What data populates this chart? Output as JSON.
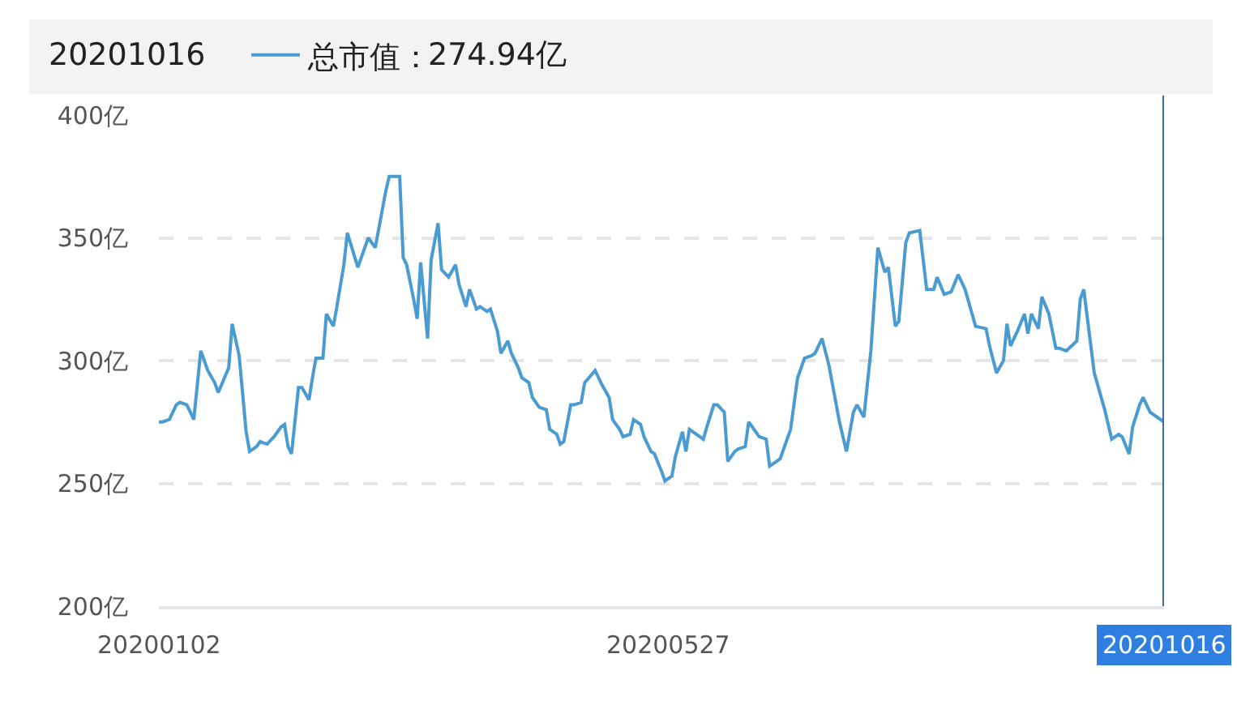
{
  "chart_data": {
    "type": "line",
    "title": "20201016",
    "legend": "top left",
    "x": [
      "2020-01-02",
      "2020-01-03",
      "2020-01-05",
      "2020-01-07",
      "2020-01-08",
      "2020-01-10",
      "2020-01-12",
      "2020-01-14",
      "2020-01-16",
      "2020-01-18",
      "2020-01-19",
      "2020-01-22",
      "2020-01-23",
      "2020-01-25",
      "2020-01-27",
      "2020-01-28",
      "2020-01-30",
      "2020-01-31",
      "2020-02-02",
      "2020-02-04",
      "2020-02-06",
      "2020-02-07",
      "2020-02-08",
      "2020-02-09",
      "2020-02-11",
      "2020-02-12",
      "2020-02-14",
      "2020-02-15",
      "2020-02-16",
      "2020-02-18",
      "2020-02-19",
      "2020-02-21",
      "2020-02-22",
      "2020-02-24",
      "2020-02-25",
      "2020-02-28",
      "2020-03-02",
      "2020-03-04",
      "2020-03-07",
      "2020-03-08",
      "2020-03-10",
      "2020-03-11",
      "2020-03-12",
      "2020-03-13",
      "2020-03-15",
      "2020-03-16",
      "2020-03-17",
      "2020-03-19",
      "2020-03-20",
      "2020-03-22",
      "2020-03-23",
      "2020-03-25",
      "2020-03-27",
      "2020-03-28",
      "2020-03-30",
      "2020-03-31",
      "2020-04-02",
      "2020-04-03",
      "2020-04-05",
      "2020-04-06",
      "2020-04-08",
      "2020-04-09",
      "2020-04-11",
      "2020-04-12",
      "2020-04-14",
      "2020-04-15",
      "2020-04-17",
      "2020-04-18",
      "2020-04-20",
      "2020-04-22",
      "2020-04-23",
      "2020-04-25",
      "2020-04-26",
      "2020-04-27",
      "2020-04-29",
      "2020-04-30",
      "2020-05-02",
      "2020-05-03",
      "2020-05-06",
      "2020-05-08",
      "2020-05-10",
      "2020-05-11",
      "2020-05-13",
      "2020-05-14",
      "2020-05-16",
      "2020-05-17",
      "2020-05-19",
      "2020-05-20",
      "2020-05-22",
      "2020-05-23",
      "2020-05-25",
      "2020-05-26",
      "2020-05-28",
      "2020-05-29",
      "2020-05-31",
      "2020-06-01",
      "2020-06-02",
      "2020-06-04",
      "2020-06-06",
      "2020-06-07",
      "2020-06-09",
      "2020-06-10",
      "2020-06-12",
      "2020-06-13",
      "2020-06-15",
      "2020-06-16",
      "2020-06-18",
      "2020-06-19",
      "2020-06-21",
      "2020-06-22",
      "2020-06-24",
      "2020-06-25",
      "2020-06-28",
      "2020-06-29",
      "2020-07-01",
      "2020-07-03",
      "2020-07-05",
      "2020-07-07",
      "2020-07-08",
      "2020-07-10",
      "2020-07-12",
      "2020-07-15",
      "2020-07-17",
      "2020-07-19",
      "2020-07-20",
      "2020-07-22",
      "2020-07-24",
      "2020-07-26",
      "2020-07-28",
      "2020-07-29",
      "2020-07-31",
      "2020-08-01",
      "2020-08-03",
      "2020-08-04",
      "2020-08-07",
      "2020-08-09",
      "2020-08-11",
      "2020-08-12",
      "2020-08-14",
      "2020-08-16",
      "2020-08-18",
      "2020-08-20",
      "2020-08-22",
      "2020-08-23",
      "2020-08-26",
      "2020-08-27",
      "2020-08-29",
      "2020-08-31",
      "2020-09-01",
      "2020-09-02",
      "2020-09-04",
      "2020-09-06",
      "2020-09-07",
      "2020-09-08",
      "2020-09-10",
      "2020-09-11",
      "2020-09-13",
      "2020-09-15",
      "2020-09-16",
      "2020-09-18",
      "2020-09-21",
      "2020-09-22",
      "2020-09-23",
      "2020-09-26",
      "2020-09-29",
      "2020-10-01",
      "2020-10-03",
      "2020-10-04",
      "2020-10-06",
      "2020-10-07",
      "2020-10-09",
      "2020-10-10",
      "2020-10-12",
      "2020-10-16"
    ],
    "series": [
      {
        "name": "总市值：",
        "color": "#4a9bd1",
        "values": [
          275,
          275,
          276,
          282,
          283,
          282,
          276,
          304,
          296,
          291,
          287,
          297,
          315,
          302,
          271,
          263,
          265,
          267,
          266,
          269,
          273,
          274,
          265,
          262,
          289,
          289,
          284,
          293,
          301,
          301,
          319,
          314,
          322,
          339,
          352,
          338,
          350,
          346,
          369,
          375,
          375,
          375,
          342,
          339,
          325,
          317,
          340,
          309,
          341,
          356,
          337,
          334,
          339,
          331,
          322,
          329,
          321,
          322,
          320,
          321,
          312,
          303,
          308,
          303,
          297,
          293,
          291,
          285,
          281,
          280,
          272,
          270,
          266,
          267,
          282,
          282,
          283,
          291,
          296,
          290,
          285,
          276,
          272,
          269,
          270,
          276,
          274,
          269,
          263,
          262,
          255,
          251,
          253,
          261,
          271,
          263,
          272,
          270,
          268,
          273,
          282,
          282,
          279,
          259,
          263,
          264,
          265,
          275,
          271,
          269,
          268,
          257,
          260,
          264,
          272,
          293,
          301,
          302,
          303,
          309,
          298,
          275,
          263,
          279,
          282,
          277,
          304,
          346,
          336,
          338,
          314,
          316,
          348,
          352,
          353,
          329,
          329,
          334,
          327,
          328,
          335,
          329,
          319,
          314,
          313,
          306,
          295,
          300,
          315,
          306,
          312,
          319,
          311,
          319,
          313,
          326,
          319,
          305,
          305,
          304,
          308,
          325,
          329,
          295,
          280,
          268,
          270,
          269,
          262,
          273,
          282,
          285,
          279,
          275
        ]
      }
    ],
    "annotations": [
      "274.94亿"
    ],
    "ref_lines": [
      {
        "axis": "x",
        "value": "2020-10-16",
        "color": "#3d6e99"
      }
    ],
    "xlim": [
      "2020-01-02",
      "2020-10-16"
    ],
    "xticks": [
      {
        "value": "2020-01-02",
        "label": "20200102"
      },
      {
        "value": "2020-05-27",
        "label": "20200527"
      },
      {
        "value": "2020-10-16",
        "label": "20201016"
      }
    ],
    "ylim": [
      200,
      400
    ],
    "yticks": [
      {
        "value": 200,
        "label": "200亿"
      },
      {
        "value": 250,
        "label": "250亿"
      },
      {
        "value": 300,
        "label": "300亿"
      },
      {
        "value": 350,
        "label": "350亿"
      },
      {
        "value": 400,
        "label": "400亿"
      }
    ],
    "grid": "y",
    "marker": "none",
    "line_style": "solid"
  }
}
